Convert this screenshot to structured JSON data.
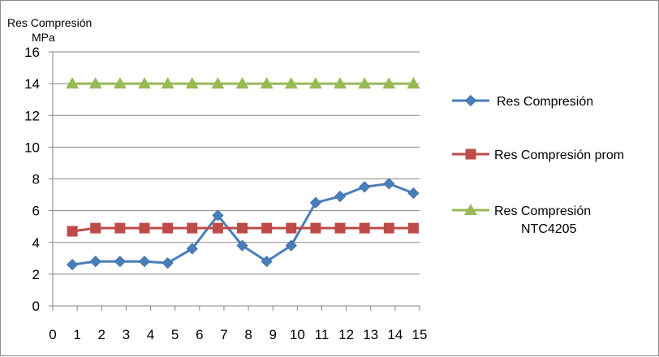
{
  "chart_data": {
    "type": "line",
    "ylabel_line1": "Res Compresión",
    "ylabel_line2": "MPa",
    "xlabel": "",
    "xlim": [
      0,
      15
    ],
    "ylim": [
      0,
      16
    ],
    "x_ticks": [
      0,
      1,
      2,
      3,
      4,
      5,
      6,
      7,
      8,
      9,
      10,
      11,
      12,
      13,
      14,
      15
    ],
    "y_ticks": [
      0,
      2,
      4,
      6,
      8,
      10,
      12,
      14,
      16
    ],
    "grid": "horizontal",
    "legend_position": "right",
    "series": [
      {
        "name": "Res Compresión",
        "color": "#4a7ebb",
        "marker": "diamond",
        "x": [
          0.8,
          1.75,
          2.75,
          3.75,
          4.7,
          5.7,
          6.75,
          7.75,
          8.75,
          9.75,
          10.75,
          11.75,
          12.75,
          13.75,
          14.75
        ],
        "values": [
          2.6,
          2.8,
          2.8,
          2.8,
          2.7,
          3.6,
          5.7,
          3.8,
          2.8,
          3.8,
          6.5,
          6.9,
          7.5,
          7.7,
          7.1
        ]
      },
      {
        "name": "Res Compresión prom",
        "color": "#be4b48",
        "marker": "square",
        "x": [
          0.8,
          1.75,
          2.75,
          3.75,
          4.7,
          5.7,
          6.75,
          7.75,
          8.75,
          9.75,
          10.75,
          11.75,
          12.75,
          13.75,
          14.75
        ],
        "values": [
          4.7,
          4.9,
          4.9,
          4.9,
          4.9,
          4.9,
          4.9,
          4.9,
          4.9,
          4.9,
          4.9,
          4.9,
          4.9,
          4.9,
          4.9
        ]
      },
      {
        "name_line1": "Res Compresión",
        "name_line2": "NTC4205",
        "color": "#98b954",
        "marker": "triangle",
        "x": [
          0.8,
          1.75,
          2.75,
          3.75,
          4.7,
          5.7,
          6.75,
          7.75,
          8.75,
          9.75,
          10.75,
          11.75,
          12.75,
          13.75,
          14.75
        ],
        "values": [
          14,
          14,
          14,
          14,
          14,
          14,
          14,
          14,
          14,
          14,
          14,
          14,
          14,
          14,
          14
        ]
      }
    ]
  }
}
